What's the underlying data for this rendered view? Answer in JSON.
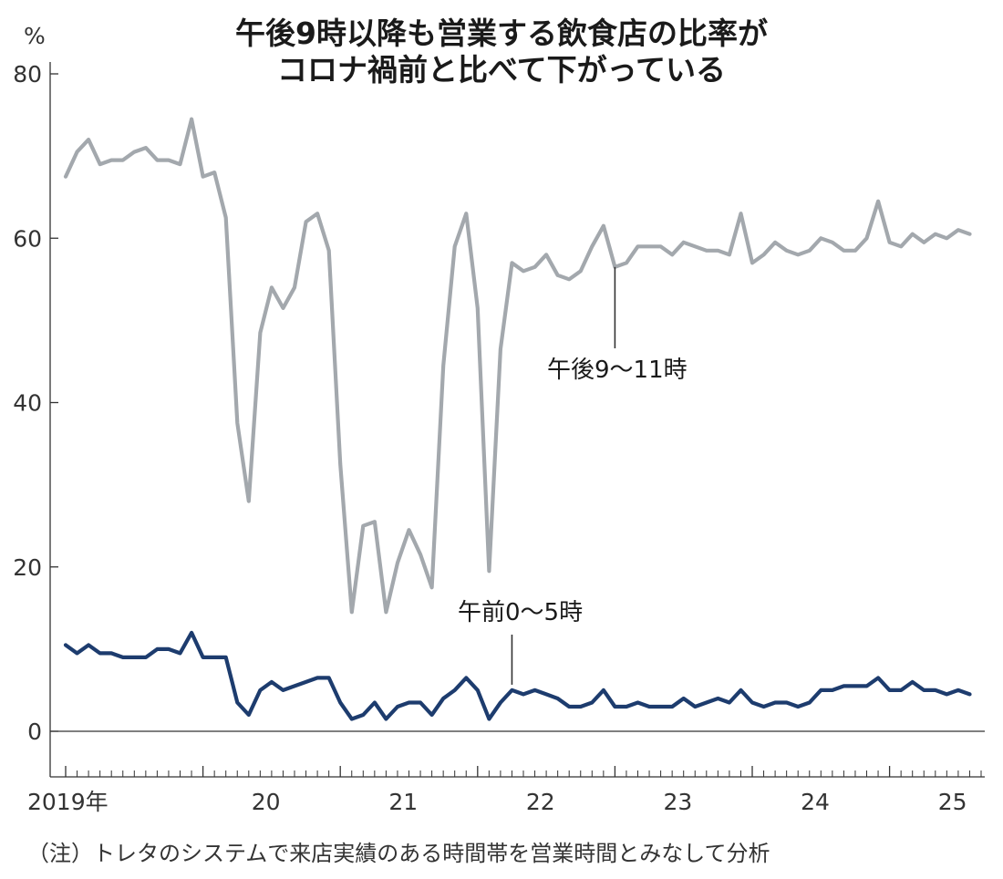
{
  "chart_data": {
    "type": "line",
    "title": "午後9時以降も営業する飲食店の比率が",
    "subtitle": "コロナ禍前と比べて下がっている",
    "ylabel": "%",
    "ylim": [
      0,
      80
    ],
    "y_ticks": [
      "0",
      "20",
      "40",
      "60",
      "80"
    ],
    "x_ticks": [
      "2019年",
      "20",
      "21",
      "22",
      "23",
      "24",
      "25"
    ],
    "grid": false,
    "colors": {
      "late_evening": "#a3a8ad",
      "midnight": "#1d3c6e"
    },
    "series": [
      {
        "name": "午後9～11時",
        "start": "2019-01",
        "values": [
          67.5,
          70.5,
          72,
          69,
          69.5,
          69.5,
          70.5,
          71,
          69.5,
          69.5,
          69,
          74.5,
          67.5,
          68,
          62.5,
          37.5,
          28,
          48.5,
          54,
          51.5,
          54,
          62,
          63,
          58.5,
          32.5,
          14.5,
          25,
          25.5,
          14.5,
          20.5,
          24.5,
          21.5,
          17.5,
          44.5,
          59,
          63,
          51.5,
          19.5,
          46.5,
          57,
          56,
          56.5,
          58,
          55.5,
          55,
          56,
          59,
          61.5,
          56.5,
          57,
          59,
          59,
          59,
          58,
          59.5,
          59,
          58.5,
          58.5,
          58,
          63,
          57,
          58,
          59.5,
          58.5,
          58,
          58.5,
          60,
          59.5,
          58.5,
          58.5,
          60,
          64.5,
          59.5,
          59,
          60.5,
          59.5,
          60.5,
          60,
          61,
          60.5
        ]
      },
      {
        "name": "午前0～5時",
        "start": "2019-01",
        "values": [
          10.5,
          9.5,
          10.5,
          9.5,
          9.5,
          9,
          9,
          9,
          10,
          10,
          9.5,
          12,
          9,
          9,
          9,
          3.5,
          2,
          5,
          6,
          5,
          5.5,
          6,
          6.5,
          6.5,
          3.5,
          1.5,
          2,
          3.5,
          1.5,
          3,
          3.5,
          3.5,
          2,
          4,
          5,
          6.5,
          5,
          1.5,
          3.5,
          5,
          4.5,
          5,
          4.5,
          4,
          3,
          3,
          3.5,
          5,
          3,
          3,
          3.5,
          3,
          3,
          3,
          4,
          3,
          3.5,
          4,
          3.5,
          5,
          3.5,
          3,
          3.5,
          3.5,
          3,
          3.5,
          5,
          5,
          5.5,
          5.5,
          5.5,
          6.5,
          5,
          5,
          6,
          5,
          5,
          4.5,
          5,
          4.5
        ]
      }
    ],
    "annotations": [
      {
        "text": "午後9～11時",
        "series": 0
      },
      {
        "text": "午前0～5時",
        "series": 1
      }
    ]
  },
  "note": "（注）トレタのシステムで来店実績のある時間帯を営業時間とみなして分析"
}
